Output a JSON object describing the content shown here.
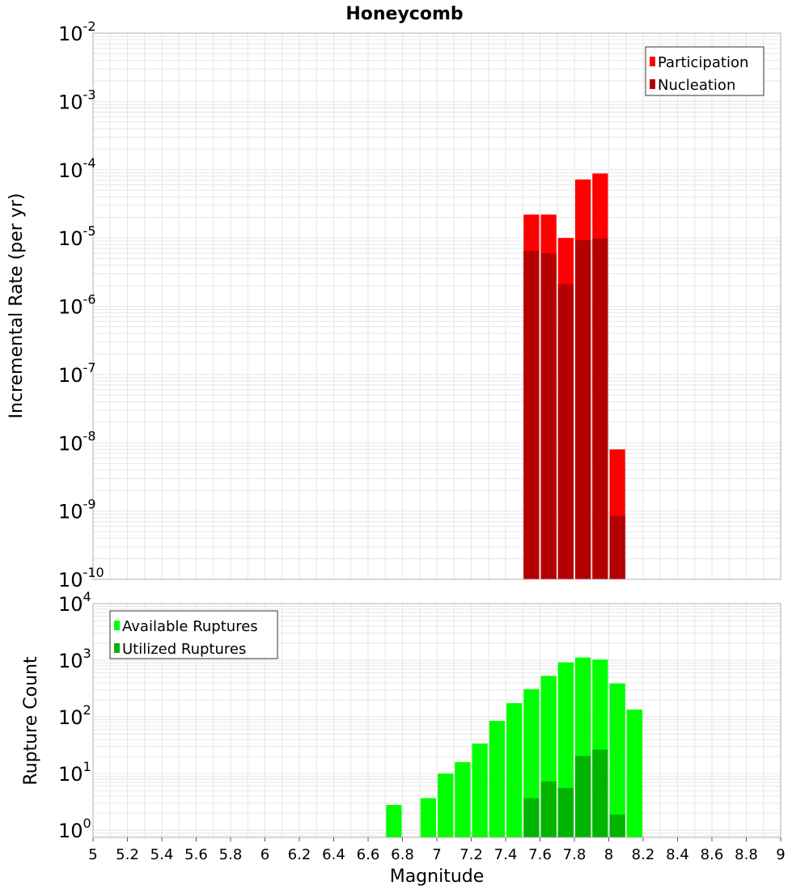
{
  "title": "Honeycomb",
  "xlabel": "Magnitude",
  "x_ticks": [
    "5",
    "5.2",
    "5.4",
    "5.6",
    "5.8",
    "6",
    "6.2",
    "6.4",
    "6.6",
    "6.8",
    "7",
    "7.2",
    "7.4",
    "7.6",
    "7.8",
    "8",
    "8.2",
    "8.4",
    "8.6",
    "8.8",
    "9"
  ],
  "colors": {
    "participation": "#ff0000",
    "nucleation": "#b40000",
    "available": "#00ff00",
    "utilized": "#00b400",
    "grid": "#e6e6e6",
    "frame": "#b0b0b0"
  },
  "chart_data": [
    {
      "type": "bar",
      "ylabel": "Incremental Rate (per yr)",
      "yscale": "log",
      "ylim": [
        1e-10,
        0.01
      ],
      "xlim": [
        5,
        9
      ],
      "y_ticks": [
        {
          "base": "10",
          "exp": "-10"
        },
        {
          "base": "10",
          "exp": "-9"
        },
        {
          "base": "10",
          "exp": "-8"
        },
        {
          "base": "10",
          "exp": "-7"
        },
        {
          "base": "10",
          "exp": "-6"
        },
        {
          "base": "10",
          "exp": "-5"
        },
        {
          "base": "10",
          "exp": "-4"
        },
        {
          "base": "10",
          "exp": "-3"
        },
        {
          "base": "10",
          "exp": "-2"
        }
      ],
      "legend": {
        "placement": "top-right",
        "entries": [
          "Participation",
          "Nucleation"
        ]
      },
      "x": [
        7.55,
        7.65,
        7.75,
        7.85,
        7.95,
        8.05
      ],
      "series": [
        {
          "name": "Participation",
          "values": [
            2.2e-05,
            2.2e-05,
            1e-05,
            7.2e-05,
            8.8e-05,
            8e-09
          ]
        },
        {
          "name": "Nucleation",
          "values": [
            6.5e-06,
            6e-06,
            2.1e-06,
            9.3e-06,
            9.8e-06,
            8.5e-10
          ]
        }
      ]
    },
    {
      "type": "bar",
      "ylabel": "Rupture Count",
      "xlabel": "Magnitude",
      "yscale": "log",
      "ylim": [
        0.75,
        10000
      ],
      "xlim": [
        5,
        9
      ],
      "y_ticks": [
        {
          "base": "10",
          "exp": "0"
        },
        {
          "base": "10",
          "exp": "1"
        },
        {
          "base": "10",
          "exp": "2"
        },
        {
          "base": "10",
          "exp": "3"
        },
        {
          "base": "10",
          "exp": "4"
        }
      ],
      "legend": {
        "placement": "top-left",
        "entries": [
          "Available Ruptures",
          "Utilized Ruptures"
        ]
      },
      "series": [
        {
          "name": "Available Ruptures",
          "x": [
            6.75,
            6.95,
            7.05,
            7.15,
            7.25,
            7.35,
            7.45,
            7.55,
            7.65,
            7.75,
            7.85,
            7.95,
            8.05,
            8.15
          ],
          "values": [
            2.8,
            3.7,
            10,
            16,
            34,
            85,
            175,
            310,
            530,
            920,
            1120,
            1030,
            390,
            135
          ]
        },
        {
          "name": "Utilized Ruptures",
          "x": [
            7.55,
            7.65,
            7.75,
            7.85,
            7.95,
            8.05
          ],
          "values": [
            3.7,
            7.3,
            5.6,
            20.5,
            26.5,
            1.9
          ]
        }
      ]
    }
  ]
}
